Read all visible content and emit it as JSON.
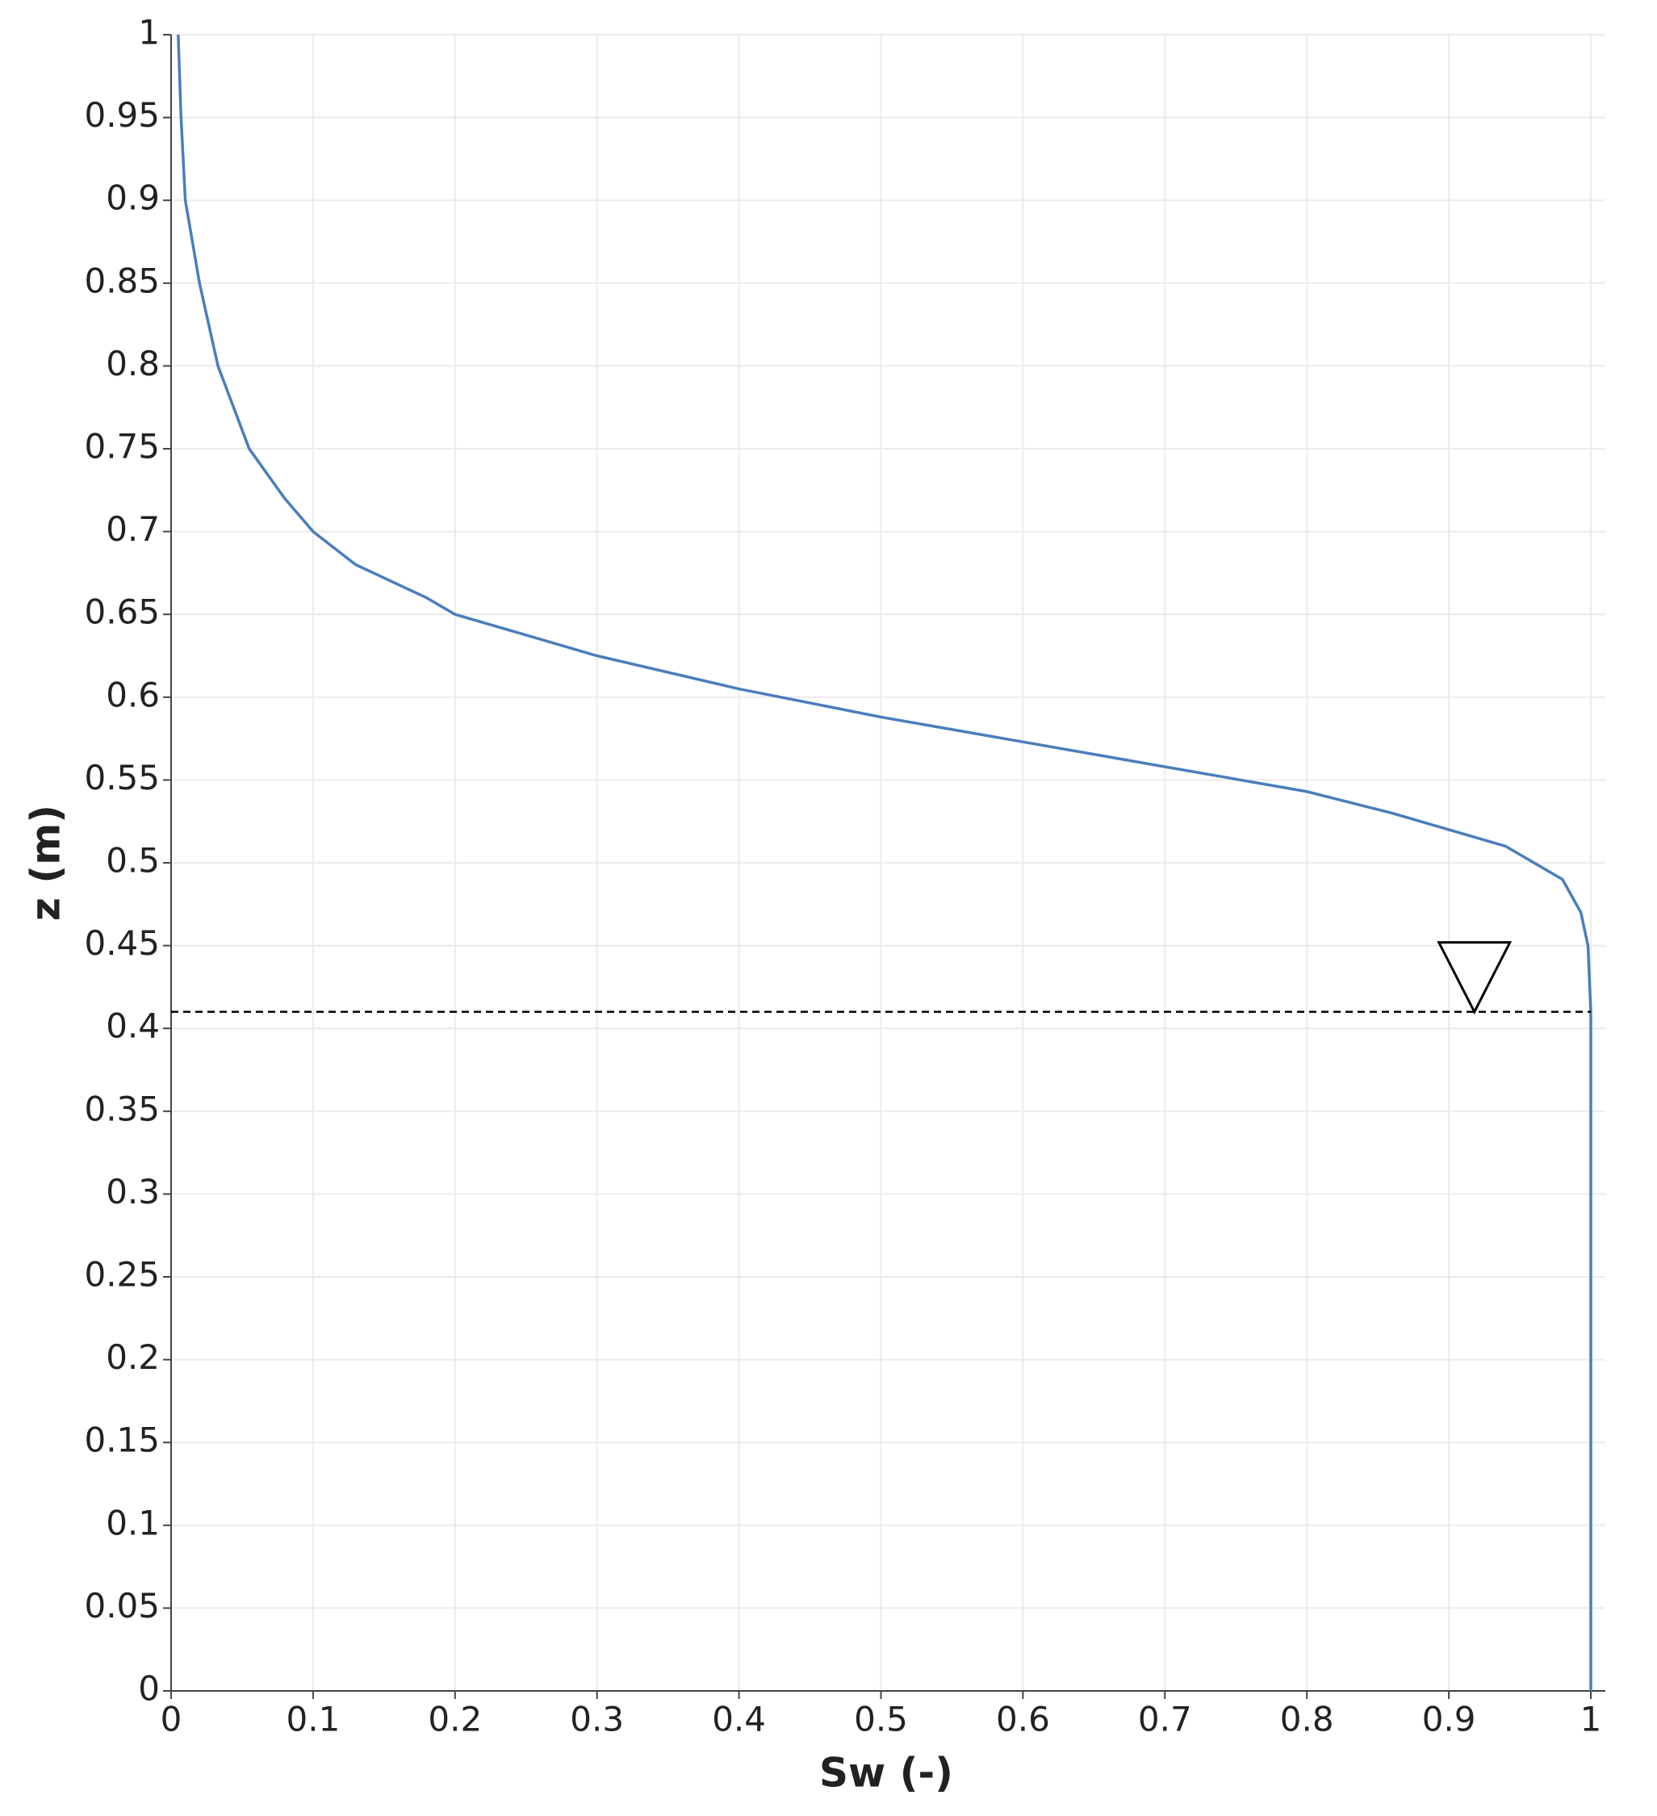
{
  "chart_data": {
    "type": "line",
    "x_label": "Sw (-)",
    "y_label": "z (m)",
    "x": [
      0.005,
      0.007,
      0.01,
      0.02,
      0.033,
      0.055,
      0.08,
      0.1,
      0.13,
      0.18,
      0.2,
      0.24,
      0.3,
      0.4,
      0.5,
      0.6,
      0.7,
      0.8,
      0.86,
      0.9,
      0.94,
      0.96,
      0.98,
      0.993,
      0.998,
      1,
      1
    ],
    "series": [
      {
        "color": "#4a7ebb",
        "values": [
          1.0,
          0.95,
          0.9,
          0.85,
          0.8,
          0.75,
          0.72,
          0.7,
          0.68,
          0.66,
          0.65,
          0.64,
          0.625,
          0.605,
          0.588,
          0.573,
          0.558,
          0.543,
          0.53,
          0.52,
          0.51,
          0.5,
          0.49,
          0.47,
          0.45,
          0.41,
          0
        ]
      }
    ],
    "water_table": {
      "y": 0.41,
      "marker_x": 0.918
    },
    "xlim": [
      0,
      1
    ],
    "xticks": [
      0,
      0.1,
      0.2,
      0.3,
      0.4,
      0.5,
      0.6,
      0.7,
      0.8,
      0.9,
      1
    ],
    "ylim": [
      0,
      1
    ],
    "yticks": [
      0,
      0.05,
      0.1,
      0.15,
      0.2,
      0.25,
      0.3,
      0.35,
      0.4,
      0.45,
      0.5,
      0.55,
      0.6,
      0.65,
      0.7,
      0.75,
      0.8,
      0.85,
      0.9,
      0.95,
      1
    ],
    "grid": true
  }
}
